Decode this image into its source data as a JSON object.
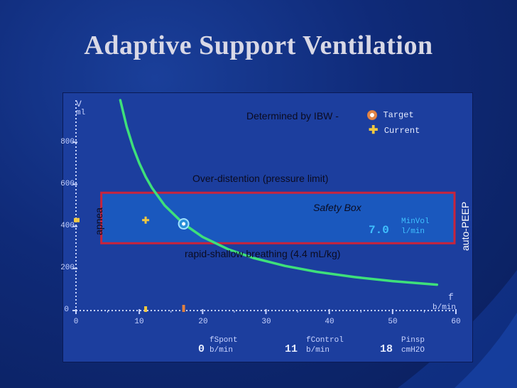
{
  "slide": {
    "title": "Adaptive Support Ventilation"
  },
  "chart_data": {
    "type": "line",
    "title": "",
    "ylabel": "V",
    "yunit": "ml",
    "xlabel": "f",
    "xunit": "b/min",
    "xlim": [
      0,
      60
    ],
    "ylim": [
      0,
      1000
    ],
    "x_ticks": [
      "0",
      "10",
      "20",
      "30",
      "40",
      "50",
      "60"
    ],
    "y_ticks": [
      "0",
      "200",
      "400",
      "600",
      "800"
    ],
    "grid": false,
    "series": [
      {
        "x": [
          7,
          8,
          9,
          10,
          11,
          12,
          14,
          17,
          20,
          24,
          28,
          33,
          38,
          44,
          50,
          57
        ],
        "y": [
          1000,
          875,
          778,
          700,
          636,
          583,
          500,
          412,
          350,
          292,
          250,
          212,
          184,
          159,
          140,
          123
        ]
      }
    ],
    "safety_box": {
      "label": "Safety Box",
      "x_range": [
        4,
        60
      ],
      "y_range": [
        320,
        560
      ]
    },
    "target_point": {
      "x": 17,
      "y": 412
    },
    "current_point": {
      "x": 11,
      "y": 430
    },
    "legend": {
      "target_label": "Target",
      "current_label": "Current",
      "target_color": "#e08040",
      "current_color": "#f0c840"
    },
    "minvol": {
      "value": "7.0",
      "name": "MinVol",
      "unit": "l/min"
    }
  },
  "annotations": {
    "ibw": "Determined by IBW -",
    "overdistention": "Over-distention (pressure limit)",
    "rapid_shallow": "rapid-shallow breathing (4.4 mL/kg)",
    "apnea": "apnea",
    "auto_peep": "auto-PEEP"
  },
  "status": {
    "fspont": {
      "value": "0",
      "name": "fSpont",
      "unit": "b/min"
    },
    "fcontrol": {
      "value": "11",
      "name": "fControl",
      "unit": "b/min"
    },
    "pinsp": {
      "value": "18",
      "name": "Pinsp",
      "unit": "cmH2O"
    }
  },
  "colors": {
    "curve": "#3ee07a",
    "box_border": "#c8243c",
    "screen_bg": "#1c3e9e",
    "axis": "#c9d4ff",
    "minvol_text": "#3fc0ff"
  }
}
